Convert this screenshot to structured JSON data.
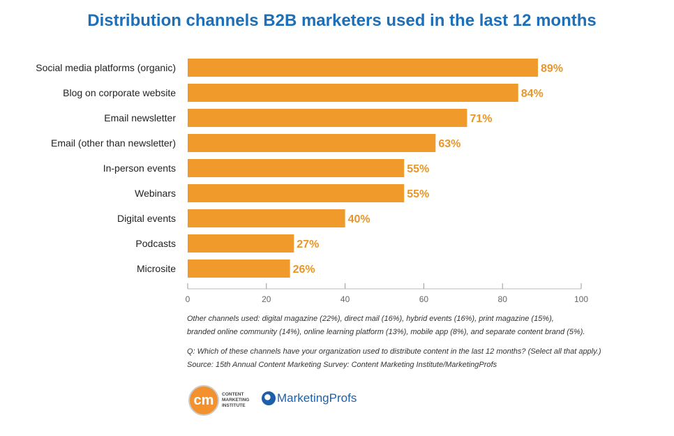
{
  "chart_data": {
    "type": "bar",
    "orientation": "horizontal",
    "title": "Distribution channels B2B marketers used in the last 12 months",
    "categories": [
      "Social media platforms (organic)",
      "Blog on corporate website",
      "Email newsletter",
      "Email (other than newsletter)",
      "In-person events",
      "Webinars",
      "Digital events",
      "Podcasts",
      "Microsite"
    ],
    "values": [
      89,
      84,
      71,
      63,
      55,
      55,
      40,
      27,
      26
    ],
    "data_labels": [
      "89%",
      "84%",
      "71%",
      "63%",
      "55%",
      "55%",
      "40%",
      "27%",
      "26%"
    ],
    "xlim": [
      0,
      100
    ],
    "xticks": [
      "0",
      "20",
      "40",
      "60",
      "80",
      "100"
    ],
    "xtick_values": [
      0,
      20,
      40,
      60,
      80,
      100
    ],
    "bar_color": "#ef9a2a",
    "label_color": "#e8962a",
    "grid": false
  },
  "notes": {
    "other_line1": "Other channels used: digital magazine (22%), direct mail (16%), hybrid events (16%), print magazine (15%),",
    "other_line2": "branded online community (14%), online learning platform (13%), mobile app (8%), and separate content brand (5%).",
    "question": "Q: Which of these channels have your organization used to distribute content in the last 12 months? (Select all that apply.)",
    "source": "Source: 15th Annual Content Marketing Survey: Content Marketing Institute/MarketingProfs"
  },
  "logos": {
    "cmi_mark": "cm",
    "cmi_text": "CONTENT MARKETING INSTITUTE",
    "mp_text": "MarketingProfs"
  }
}
